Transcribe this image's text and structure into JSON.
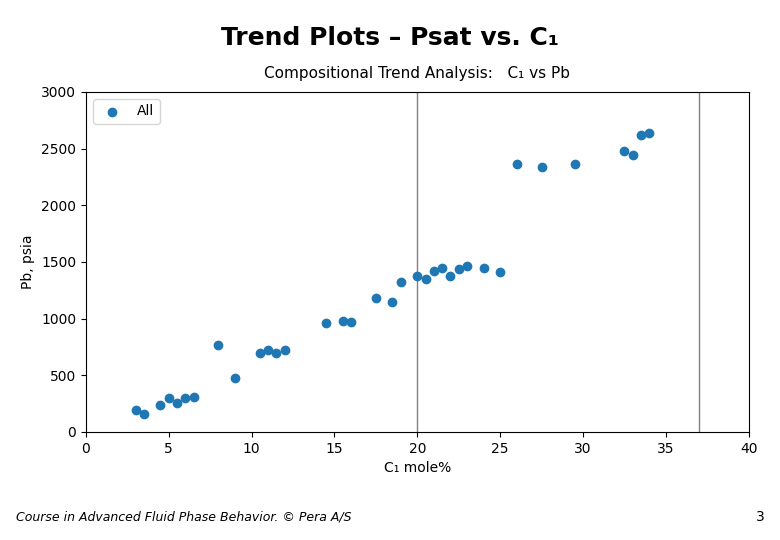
{
  "chart_data": {
    "type": "scatter",
    "title": "Trend Plots – Psat vs. C₁",
    "subtitle": "Compositional Trend Analysis:   C₁ vs Pb",
    "x_label": "C₁ mole%",
    "y_label": "Pb, psia",
    "annotations": [
      "Course in Advanced Fluid Phase Behavior. © Pera A/S",
      "3"
    ],
    "x": [
      3.0,
      3.5,
      4.5,
      5.0,
      5.5,
      6.0,
      6.5,
      8.0,
      9.0,
      10.5,
      11.0,
      11.5,
      12.0,
      14.5,
      15.5,
      16.0,
      17.5,
      18.5,
      19.0,
      20.0,
      20.5,
      21.0,
      21.5,
      22.0,
      22.5,
      23.0,
      24.0,
      25.0,
      26.0,
      27.5,
      29.5,
      32.5,
      33.0,
      33.5,
      34.0
    ],
    "series": [
      {
        "name": "All",
        "values": [
          190,
          160,
          240,
          300,
          260,
          300,
          310,
          770,
          480,
          700,
          720,
          700,
          720,
          960,
          980,
          970,
          1180,
          1150,
          1320,
          1380,
          1350,
          1420,
          1450,
          1380,
          1440,
          1460,
          1450,
          1410,
          2360,
          2340,
          2360,
          2480,
          2440,
          2620,
          2640
        ]
      }
    ],
    "vlines": [
      20,
      37
    ],
    "xlim": [
      0,
      40
    ],
    "ylim": [
      0,
      3000
    ],
    "xticks": [
      0,
      5,
      10,
      15,
      20,
      25,
      30,
      35,
      40
    ],
    "yticks": [
      0,
      500,
      1000,
      1500,
      2000,
      2500,
      3000
    ],
    "grid": false,
    "legend": "upper left"
  }
}
